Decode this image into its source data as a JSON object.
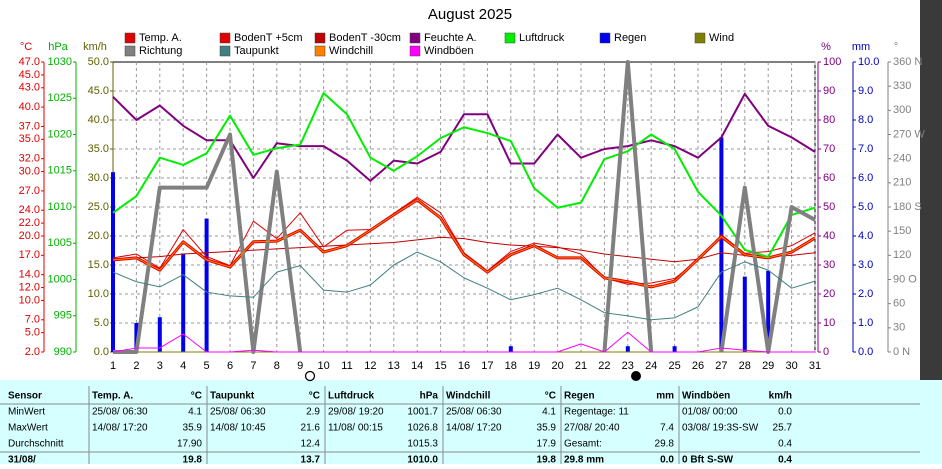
{
  "chart_data": {
    "type": "line",
    "title": "August 2025",
    "x": [
      1,
      2,
      3,
      4,
      5,
      6,
      7,
      8,
      9,
      10,
      11,
      12,
      13,
      14,
      15,
      16,
      17,
      18,
      19,
      20,
      21,
      22,
      23,
      24,
      25,
      26,
      27,
      28,
      29,
      30,
      31
    ],
    "xlim": [
      1,
      31
    ],
    "grid": true,
    "axes": [
      {
        "id": "temp",
        "label": "°C",
        "color": "#e00000",
        "side": "left",
        "lim": [
          2,
          47
        ],
        "ticks": [
          {
            "value": 2,
            "label": "2.0"
          },
          {
            "value": 5,
            "label": "5.0"
          },
          {
            "value": 7,
            "label": "7.0"
          },
          {
            "value": 10,
            "label": "10.0"
          },
          {
            "value": 12,
            "label": "12.0"
          },
          {
            "value": 14,
            "label": "14.0"
          },
          {
            "value": 17,
            "label": "17.0"
          },
          {
            "value": 20,
            "label": "20.0"
          },
          {
            "value": 22,
            "label": "22.0"
          },
          {
            "value": 24,
            "label": "24.0"
          },
          {
            "value": 27,
            "label": "27.0"
          },
          {
            "value": 30,
            "label": "30.0"
          },
          {
            "value": 32,
            "label": "32.0"
          },
          {
            "value": 35,
            "label": "35.0"
          },
          {
            "value": 37,
            "label": "37.0"
          },
          {
            "value": 40,
            "label": "40.0"
          },
          {
            "value": 43,
            "label": "43.0"
          },
          {
            "value": 45,
            "label": "45.0"
          },
          {
            "value": 47,
            "label": "47.0"
          }
        ]
      },
      {
        "id": "hpa",
        "label": "hPa",
        "color": "#00b000",
        "side": "left",
        "lim": [
          990,
          1030
        ],
        "ticks": [
          990,
          995,
          1000,
          1005,
          1010,
          1015,
          1020,
          1025,
          1030
        ]
      },
      {
        "id": "kmh",
        "label": "km/h",
        "color": "#606000",
        "side": "left",
        "lim": [
          0,
          50
        ],
        "ticks": [
          {
            "value": 0,
            "label": "0.0"
          },
          {
            "value": 5,
            "label": "5.0"
          },
          {
            "value": 10,
            "label": "10.0"
          },
          {
            "value": 15,
            "label": "15.0"
          },
          {
            "value": 20,
            "label": "20.0"
          },
          {
            "value": 25,
            "label": "25.0"
          },
          {
            "value": 30,
            "label": "30.0"
          },
          {
            "value": 35,
            "label": "35.0"
          },
          {
            "value": 40,
            "label": "40.0"
          },
          {
            "value": 45,
            "label": "45.0"
          },
          {
            "value": 50,
            "label": "50.0"
          }
        ]
      },
      {
        "id": "pct",
        "label": "%",
        "color": "#800080",
        "side": "right",
        "lim": [
          0,
          100
        ],
        "ticks": [
          0,
          10,
          20,
          30,
          40,
          50,
          60,
          70,
          80,
          90,
          100
        ]
      },
      {
        "id": "mm",
        "label": "mm",
        "color": "#0000c0",
        "side": "right",
        "lim": [
          0,
          10
        ],
        "ticks": [
          {
            "value": 0,
            "label": "0.0"
          },
          {
            "value": 1,
            "label": "1.0"
          },
          {
            "value": 2,
            "label": "2.0"
          },
          {
            "value": 3,
            "label": "3.0"
          },
          {
            "value": 4,
            "label": "4.0"
          },
          {
            "value": 5,
            "label": "5.0"
          },
          {
            "value": 6,
            "label": "6.0"
          },
          {
            "value": 7,
            "label": "7.0"
          },
          {
            "value": 8,
            "label": "8.0"
          },
          {
            "value": 9,
            "label": "9.0"
          },
          {
            "value": 10,
            "label": "10.0"
          }
        ]
      },
      {
        "id": "deg",
        "label": "°",
        "color": "#808080",
        "side": "right",
        "lim": [
          0,
          360
        ],
        "ticks": [
          {
            "value": 0,
            "label": "0 N"
          },
          30,
          60,
          {
            "value": 90,
            "label": "90 O"
          },
          120,
          150,
          {
            "value": 180,
            "label": "180 S"
          },
          210,
          240,
          {
            "value": 270,
            "label": "270 W"
          },
          300,
          330,
          {
            "value": 360,
            "label": "360 N"
          }
        ]
      }
    ],
    "series": [
      {
        "name": "Temp. A.",
        "color": "#e00000",
        "axis": "temp",
        "style": "line",
        "line_width": 3,
        "values": [
          16.3,
          16.6,
          14.7,
          19.1,
          16.3,
          15.2,
          19.1,
          19.2,
          20.9,
          17.5,
          18.5,
          20.9,
          23.3,
          25.6,
          22.8,
          17.1,
          14.4,
          17.1,
          18.5,
          16.6,
          16.6,
          13.5,
          12.9,
          12.1,
          13.0,
          16.4,
          19.9,
          17.1,
          16.6,
          17.5,
          19.7
        ]
      },
      {
        "name": "BodenT +5cm",
        "color": "#e00000",
        "axis": "temp",
        "style": "line",
        "line_width": 1,
        "values": [
          16.6,
          17.2,
          15.0,
          21.0,
          16.8,
          15.4,
          22.3,
          19.6,
          23.6,
          18.3,
          20.9,
          21.0,
          23.5,
          26.0,
          23.6,
          17.4,
          14.6,
          17.6,
          18.9,
          18.3,
          17.2,
          13.5,
          12.5,
          12.7,
          13.4,
          16.2,
          20.2,
          17.3,
          17.6,
          18.5,
          20.5
        ]
      },
      {
        "name": "BodenT -30cm",
        "color": "#c00000",
        "axis": "temp",
        "style": "line",
        "line_width": 1,
        "values": [
          16.3,
          16.6,
          16.8,
          17.2,
          17.4,
          17.6,
          17.8,
          18.0,
          18.2,
          18.4,
          18.6,
          18.8,
          19.0,
          19.4,
          19.8,
          19.6,
          19.0,
          18.6,
          18.4,
          18.2,
          17.8,
          17.2,
          16.8,
          16.4,
          16.0,
          16.4,
          17.4,
          17.0,
          16.8,
          17.0,
          17.4
        ]
      },
      {
        "name": "Feuchte A.",
        "color": "#800080",
        "axis": "pct",
        "style": "line",
        "line_width": 2,
        "values": [
          88,
          80,
          85,
          78,
          73,
          73,
          60,
          72,
          71,
          71,
          66,
          59,
          66,
          65,
          69,
          82,
          82,
          65,
          65,
          75,
          67,
          70,
          71,
          73,
          71,
          67,
          74,
          89,
          78,
          74,
          69
        ]
      },
      {
        "name": "Luftdruck",
        "color": "#00ee00",
        "axis": "hpa",
        "style": "line",
        "line_width": 2,
        "values": [
          1009.2,
          1011.5,
          1016.8,
          1015.8,
          1017.4,
          1022.6,
          1017.2,
          1018.1,
          1018.6,
          1025.7,
          1022.8,
          1016.8,
          1015.0,
          1017.0,
          1019.5,
          1021.0,
          1020.2,
          1019.1,
          1012.6,
          1009.9,
          1010.6,
          1016.6,
          1017.7,
          1020.0,
          1018.0,
          1012.1,
          1008.8,
          1004.1,
          1003.1,
          1008.9,
          1009.9
        ]
      },
      {
        "name": "Regen",
        "color": "#0000ee",
        "axis": "mm",
        "style": "bar",
        "line_width": 4,
        "values": [
          6.2,
          1.0,
          1.2,
          3.4,
          4.6,
          0,
          0,
          0,
          0,
          0,
          0,
          0,
          0,
          0,
          0,
          0,
          0,
          0.2,
          0,
          0,
          0,
          0,
          0.2,
          0,
          0.2,
          0,
          7.4,
          2.6,
          2.8,
          0,
          0
        ]
      },
      {
        "name": "Wind",
        "color": "#808000",
        "axis": "kmh",
        "style": "line",
        "line_width": 1,
        "values": [
          0,
          0,
          0,
          0,
          0,
          0,
          0,
          0,
          0,
          0,
          0,
          0,
          0,
          0,
          0,
          0,
          0,
          0,
          0,
          0,
          0,
          0,
          0,
          0,
          0,
          0,
          0,
          0,
          0,
          0,
          0
        ]
      },
      {
        "name": "Richtung",
        "color": "#808080",
        "axis": "deg",
        "style": "line",
        "line_width": 4,
        "values": [
          0,
          0,
          204,
          204,
          204,
          270,
          0,
          224,
          0,
          null,
          null,
          null,
          null,
          null,
          null,
          null,
          null,
          null,
          null,
          null,
          null,
          0,
          360,
          0,
          null,
          null,
          0,
          204,
          0,
          180,
          164
        ]
      },
      {
        "name": "Taupunkt",
        "color": "#408080",
        "axis": "temp",
        "style": "line",
        "line_width": 1,
        "values": [
          14.4,
          12.9,
          12.1,
          14.0,
          11.3,
          10.7,
          10.5,
          14.4,
          15.4,
          11.6,
          11.3,
          12.4,
          15.5,
          17.5,
          16.0,
          13.5,
          11.9,
          10.1,
          10.9,
          11.9,
          10.1,
          8.1,
          7.6,
          7.0,
          7.3,
          9.0,
          14.4,
          16.0,
          14.7,
          11.9,
          13.0
        ]
      },
      {
        "name": "Windchill",
        "color": "#ff8000",
        "axis": "temp",
        "style": "line",
        "line_width": 1,
        "values": [
          16.3,
          16.6,
          14.7,
          19.1,
          16.3,
          15.2,
          19.1,
          19.2,
          20.9,
          17.5,
          18.5,
          20.9,
          23.3,
          25.6,
          22.8,
          17.1,
          14.4,
          17.1,
          18.5,
          16.6,
          16.6,
          13.5,
          12.9,
          12.1,
          13.0,
          16.4,
          19.9,
          17.1,
          16.6,
          17.5,
          19.7
        ]
      },
      {
        "name": "Windböen",
        "color": "#ff00ff",
        "axis": "kmh",
        "style": "line",
        "line_width": 1,
        "values": [
          0,
          0.7,
          0.7,
          3.1,
          0,
          0,
          0.3,
          0,
          0,
          0,
          0,
          0,
          0,
          0,
          0,
          0,
          0,
          0,
          0,
          0,
          1.4,
          0,
          3.4,
          0,
          0,
          0,
          0.7,
          0.3,
          0,
          0,
          0
        ]
      }
    ]
  },
  "table": {
    "sensor": [
      "Sensor",
      "MinWert",
      "MaxWert",
      "Durchschnitt",
      "31/08/"
    ],
    "groups": [
      {
        "name": "Temp. A.",
        "unit": "°C",
        "rows": [
          [
            "25/08/ 06:30",
            "4.1"
          ],
          [
            "14/08/ 17:20",
            "35.9"
          ],
          [
            null,
            "17.90"
          ],
          [
            null,
            "19.8"
          ]
        ]
      },
      {
        "name": "Taupunkt",
        "unit": "°C",
        "rows": [
          [
            "25/08/ 06:30",
            "2.9"
          ],
          [
            "14/08/ 10:45",
            "21.6"
          ],
          [
            null,
            "12.4"
          ],
          [
            null,
            "13.7"
          ]
        ]
      },
      {
        "name": "Luftdruck",
        "unit": "hPa",
        "rows": [
          [
            "29/08/ 19:20",
            "1001.7"
          ],
          [
            "11/08/ 00:15",
            "1026.8"
          ],
          [
            null,
            "1015.3"
          ],
          [
            null,
            "1010.0"
          ]
        ]
      },
      {
        "name": "Windchill",
        "unit": "°C",
        "rows": [
          [
            "25/08/ 06:30",
            "4.1"
          ],
          [
            "14/08/ 17:20",
            "35.9"
          ],
          [
            null,
            "17.9"
          ],
          [
            null,
            "19.8"
          ]
        ]
      },
      {
        "name": "Regen",
        "unit": "mm",
        "rows": [
          [
            "Regentage: 11",
            null
          ],
          [
            "27/08/ 20:40",
            "7.4"
          ],
          [
            "Gesamt:",
            "29.8"
          ],
          [
            "29.8 mm",
            "0.0"
          ]
        ]
      },
      {
        "name": "Windböen",
        "unit": "km/h",
        "rows": [
          [
            "01/08/ 00:00",
            "0.0"
          ],
          [
            "03/08/ 19:3S-SW",
            "25.7"
          ],
          [
            null,
            "0.4"
          ],
          [
            "0 Bft S-SW",
            "0.4"
          ]
        ]
      }
    ]
  }
}
